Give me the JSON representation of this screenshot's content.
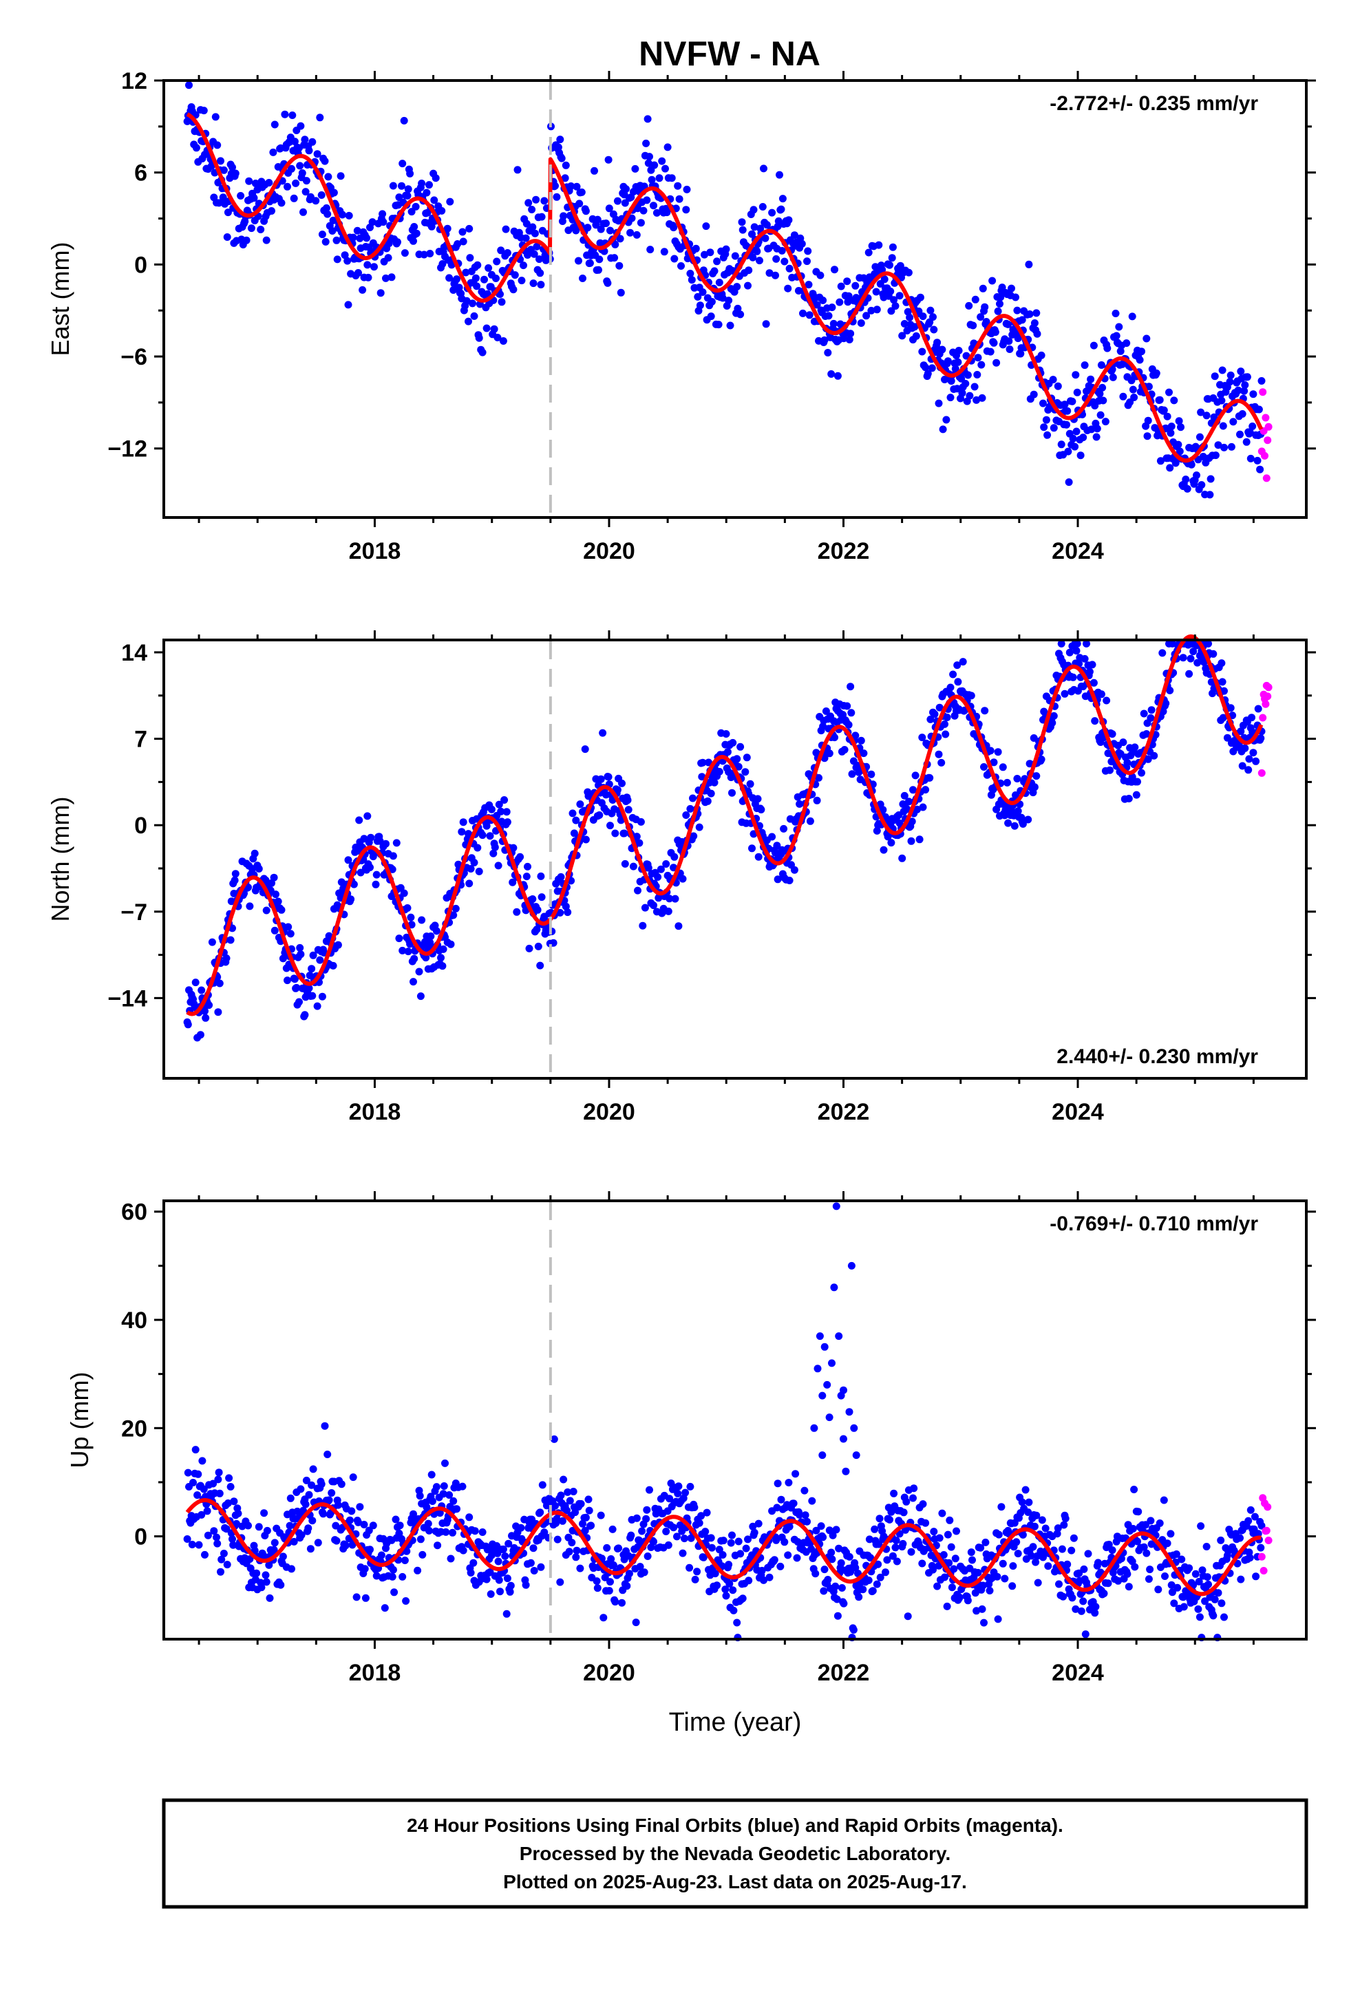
{
  "figure": {
    "title": "NVFW - NA",
    "footer_lines": [
      "24 Hour Positions Using Final Orbits (blue) and Rapid Orbits (magenta).",
      "Processed by the Nevada Geodetic Laboratory.",
      "Plotted on 2025-Aug-23. Last data on 2025-Aug-17."
    ],
    "colors": {
      "final_orbits": "#0000ff",
      "rapid_orbits": "#ff00ff",
      "model_fit": "#ff0000",
      "event_line": "#c0c0c0"
    }
  },
  "chart_data": [
    {
      "type": "scatter",
      "ylabel": "East (mm)",
      "xlabel": "",
      "rate_label": "-2.772+/- 0.235 mm/yr",
      "rate_position": "top-right",
      "xlim": [
        2016.2,
        2025.95
      ],
      "ylim": [
        -16.5,
        12
      ],
      "xticks": [
        2018,
        2020,
        2022,
        2024
      ],
      "xtick_labels": [
        "2018",
        "2020",
        "2022",
        "2024"
      ],
      "yticks": [
        12,
        6,
        0,
        -6,
        -12
      ],
      "ytick_labels": [
        "12",
        "6",
        "0",
        "−6",
        "−12"
      ],
      "event_line_x": 2019.5,
      "rapid_start": 2025.57,
      "model": {
        "start": 2016.4,
        "end": 2025.57,
        "ref_year": 2016.4,
        "value_at_ref": 7.2,
        "rate_mm_per_yr": -2.772,
        "annual_amplitude": 2.6,
        "annual_phase": 1.6,
        "offsets": [
          [
            2019.5,
            6.2
          ]
        ]
      },
      "scatter_noise": 1.5,
      "spikes": []
    },
    {
      "type": "scatter",
      "ylabel": "North (mm)",
      "xlabel": "",
      "rate_label": "2.440+/- 0.230 mm/yr",
      "rate_position": "bottom-right",
      "xlim": [
        2016.2,
        2025.95
      ],
      "ylim": [
        -20.5,
        15
      ],
      "xticks": [
        2018,
        2020,
        2022,
        2024
      ],
      "xtick_labels": [
        "2018",
        "2020",
        "2022",
        "2024"
      ],
      "yticks": [
        14,
        7,
        0,
        -7,
        -14
      ],
      "ytick_labels": [
        "14",
        "7",
        "0",
        "−7",
        "−14"
      ],
      "event_line_x": 2019.5,
      "rapid_start": 2025.57,
      "model": {
        "start": 2016.4,
        "end": 2025.57,
        "ref_year": 2016.4,
        "value_at_ref": -10.5,
        "rate_mm_per_yr": 2.44,
        "annual_amplitude": 4.9,
        "annual_phase": -1.9,
        "offsets": []
      },
      "scatter_noise": 1.3,
      "spikes": []
    },
    {
      "type": "scatter",
      "ylabel": "Up (mm)",
      "xlabel": "Time (year)",
      "rate_label": "-0.769+/- 0.710 mm/yr",
      "rate_position": "top-right",
      "xlim": [
        2016.2,
        2025.95
      ],
      "ylim": [
        -19,
        62
      ],
      "xticks": [
        2018,
        2020,
        2022,
        2024
      ],
      "xtick_labels": [
        "2018",
        "2020",
        "2022",
        "2024"
      ],
      "yticks": [
        60,
        40,
        20,
        0
      ],
      "ytick_labels": [
        "60",
        "40",
        "20",
        "0"
      ],
      "event_line_x": 2019.5,
      "rapid_start": 2025.57,
      "model": {
        "start": 2016.4,
        "end": 2025.57,
        "ref_year": 2016.4,
        "value_at_ref": 1.4,
        "rate_mm_per_yr": -0.769,
        "annual_amplitude": 5.4,
        "annual_phase": 0.6,
        "offsets": []
      },
      "scatter_noise": 3.8,
      "spikes": [
        [
          2021.78,
          31
        ],
        [
          2021.8,
          37
        ],
        [
          2021.82,
          26
        ],
        [
          2021.84,
          35
        ],
        [
          2021.86,
          28
        ],
        [
          2021.88,
          22
        ],
        [
          2021.9,
          32
        ],
        [
          2021.92,
          46
        ],
        [
          2021.94,
          61
        ],
        [
          2021.96,
          37
        ],
        [
          2021.98,
          26
        ],
        [
          2022.0,
          18
        ],
        [
          2022.02,
          12
        ],
        [
          2022.05,
          23
        ],
        [
          2022.07,
          50
        ],
        [
          2022.09,
          20
        ],
        [
          2022.11,
          15
        ],
        [
          2021.75,
          20
        ],
        [
          2021.82,
          15
        ],
        [
          2022.0,
          27
        ]
      ]
    }
  ]
}
